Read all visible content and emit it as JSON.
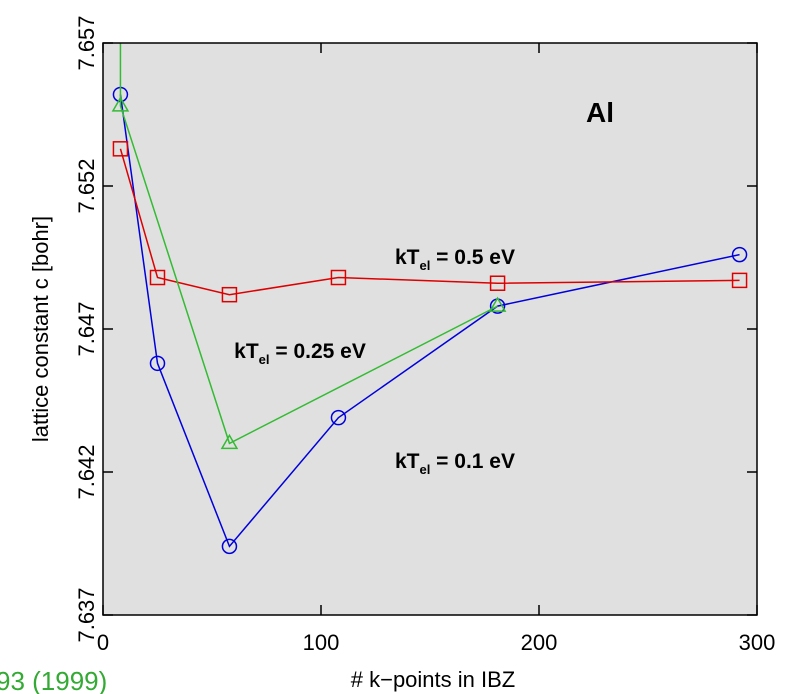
{
  "chart_data": {
    "type": "line",
    "xlabel": "# k−points in IBZ",
    "ylabel": "lattice constant c [bohr]",
    "xlim": [
      0,
      300
    ],
    "ylim": [
      7.637,
      7.657
    ],
    "xticks": [
      {
        "value": 0,
        "label": "0"
      },
      100,
      200,
      300
    ],
    "yticks": [
      7.637,
      7.642,
      7.647,
      7.652,
      7.657
    ],
    "background": "#e0e0e0",
    "series": [
      {
        "marker": "circle",
        "color": "#0000dd",
        "x": [
          8,
          25,
          58,
          108,
          181,
          292
        ],
        "values": [
          7.6552,
          7.6458,
          7.6394,
          7.6439,
          7.6478,
          7.6496
        ]
      },
      {
        "marker": "square",
        "color": "#dd0000",
        "x": [
          8,
          25,
          58,
          108,
          181,
          292
        ],
        "values": [
          7.6533,
          7.6488,
          7.6482,
          7.6488,
          7.6486,
          7.6487
        ]
      },
      {
        "marker": "triangle",
        "color": "#33bb33",
        "x": [
          8,
          8,
          58,
          181
        ],
        "values": [
          7.66,
          7.6548,
          7.643,
          7.6478
        ]
      }
    ],
    "annotations": [
      {
        "parts": [
          "Al"
        ]
      },
      {
        "parts": [
          "kT",
          "el",
          " = 0.5 eV"
        ]
      },
      {
        "parts": [
          "kT",
          "el",
          " = 0.25 eV"
        ]
      },
      {
        "parts": [
          "kT",
          "el",
          " = 0.1 eV"
        ]
      }
    ],
    "footer_fragment": "93 (1999)"
  }
}
